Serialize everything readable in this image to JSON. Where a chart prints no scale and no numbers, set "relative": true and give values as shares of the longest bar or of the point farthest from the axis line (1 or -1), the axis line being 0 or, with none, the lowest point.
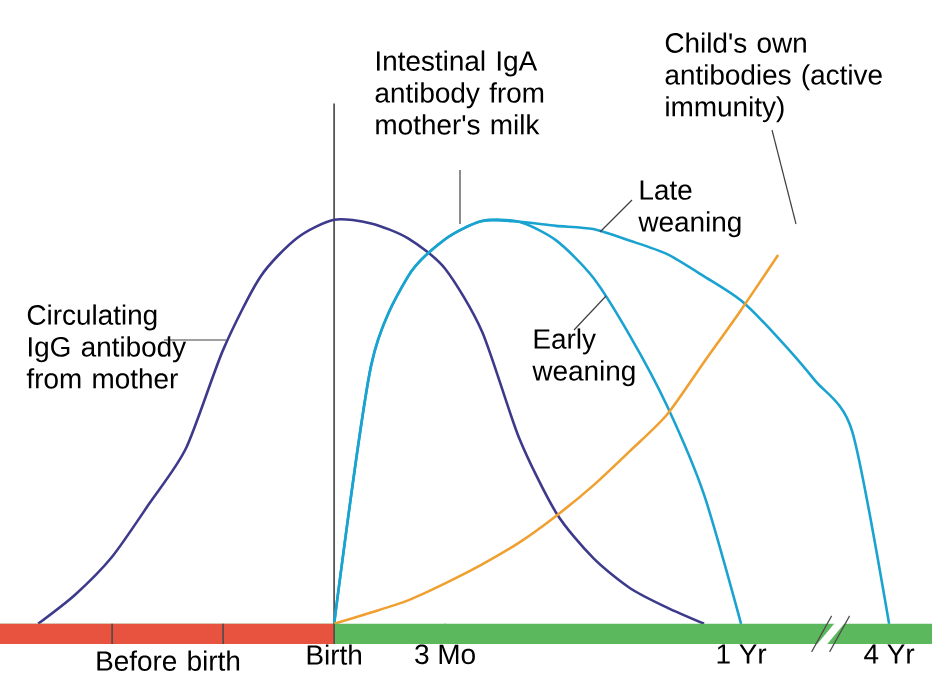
{
  "chart_data": {
    "type": "line",
    "relative": true,
    "categories": [
      null,
      null,
      null,
      null,
      null,
      null,
      null,
      null,
      null,
      "Birth",
      null,
      null,
      "3 Mo",
      null,
      null,
      null,
      null,
      null,
      null,
      null,
      "1 Yr",
      null,
      null,
      null,
      "4 Yr",
      null
    ],
    "series": [
      {
        "color": "#3d3a8c",
        "values": [
          null,
          0,
          0.072,
          0.166,
          0.297,
          0.435,
          0.678,
          0.858,
          0.955,
          1.0,
          0.991,
          0.954,
          0.879,
          0.723,
          0.46,
          0.275,
          0.163,
          0.088,
          0.04,
          0,
          null,
          null,
          null,
          null,
          null,
          null
        ]
      },
      {
        "color": "#1aa3d0",
        "values": [
          null,
          null,
          null,
          null,
          null,
          null,
          null,
          null,
          null,
          0,
          0.639,
          0.86,
          0.952,
          0.997,
          0.995,
          0.949,
          0.857,
          0.712,
          0.539,
          0.319,
          0,
          null,
          null,
          null,
          null,
          null
        ]
      },
      {
        "color": "#1aa3d0",
        "values": [
          null,
          null,
          null,
          null,
          null,
          null,
          null,
          null,
          null,
          0,
          0.639,
          0.86,
          0.952,
          0.997,
          0.995,
          0.985,
          0.977,
          0.948,
          0.915,
          0.86,
          0.8,
          0.708,
          0.602,
          0.477,
          0,
          null
        ]
      },
      {
        "color": "#f0a030",
        "values": [
          null,
          null,
          null,
          null,
          null,
          null,
          null,
          null,
          null,
          0,
          0.028,
          0.058,
          0.1,
          0.147,
          0.201,
          0.267,
          0.342,
          0.428,
          0.518,
          0.648,
          0.777,
          0.913,
          null,
          null,
          null,
          null
        ]
      }
    ],
    "annotations": [
      "Circulating IgG antibody from mother",
      "Intestinal IgA antibody from mother's milk",
      "Late weaning",
      "Early weaning",
      "Child's own antibodies (active immunity)",
      "Before birth"
    ],
    "ref_lines": [
      {
        "axis": "x",
        "value": "Birth",
        "color": "#555555"
      }
    ]
  }
}
